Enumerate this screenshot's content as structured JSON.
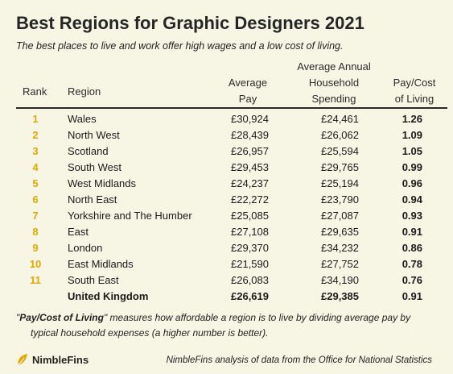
{
  "title": "Best Regions for Graphic Designers 2021",
  "subtitle": "The best places to live and work offer high wages and a low cost of living.",
  "headers": {
    "rank": [
      "Rank"
    ],
    "region": [
      "Region"
    ],
    "pay": [
      "Average",
      "Pay"
    ],
    "spending": [
      "Average Annual",
      "Household",
      "Spending"
    ],
    "ratio": [
      "Pay/Cost",
      "of Living"
    ]
  },
  "rows": [
    {
      "rank": "1",
      "region": "Wales",
      "pay": "£30,924",
      "spending": "£24,461",
      "ratio": "1.26"
    },
    {
      "rank": "2",
      "region": "North West",
      "pay": "£28,439",
      "spending": "£26,062",
      "ratio": "1.09"
    },
    {
      "rank": "3",
      "region": "Scotland",
      "pay": "£26,957",
      "spending": "£25,594",
      "ratio": "1.05"
    },
    {
      "rank": "4",
      "region": "South West",
      "pay": "£29,453",
      "spending": "£29,765",
      "ratio": "0.99"
    },
    {
      "rank": "5",
      "region": "West Midlands",
      "pay": "£24,237",
      "spending": "£25,194",
      "ratio": "0.96"
    },
    {
      "rank": "6",
      "region": "North East",
      "pay": "£22,272",
      "spending": "£23,790",
      "ratio": "0.94"
    },
    {
      "rank": "7",
      "region": "Yorkshire and The Humber",
      "pay": "£25,085",
      "spending": "£27,087",
      "ratio": "0.93"
    },
    {
      "rank": "8",
      "region": "East",
      "pay": "£27,108",
      "spending": "£29,635",
      "ratio": "0.91"
    },
    {
      "rank": "9",
      "region": "London",
      "pay": "£29,370",
      "spending": "£34,232",
      "ratio": "0.86"
    },
    {
      "rank": "10",
      "region": "East Midlands",
      "pay": "£21,590",
      "spending": "£27,752",
      "ratio": "0.78"
    },
    {
      "rank": "11",
      "region": "South East",
      "pay": "£26,083",
      "spending": "£34,190",
      "ratio": "0.76"
    }
  ],
  "total": {
    "region": "United Kingdom",
    "pay": "£26,619",
    "spending": "£29,385",
    "ratio": "0.91"
  },
  "footnote": {
    "open_quote": "\"",
    "term": "Pay/Cost of Living",
    "text_line1": "\" measures how affordable a region is to live by dividing average pay by",
    "text_line2": "typical household expenses (a higher number is better)."
  },
  "logo": {
    "name": "NimbleFins",
    "icon": "nimblefins-leaf-icon"
  },
  "source": "NimbleFins analysis of data from the Office for National Statistics",
  "colors": {
    "background": "#f7f5e4",
    "rank": "#e0a800",
    "logo_leaf": "#e0a800",
    "rule": "#2a2a2a"
  }
}
